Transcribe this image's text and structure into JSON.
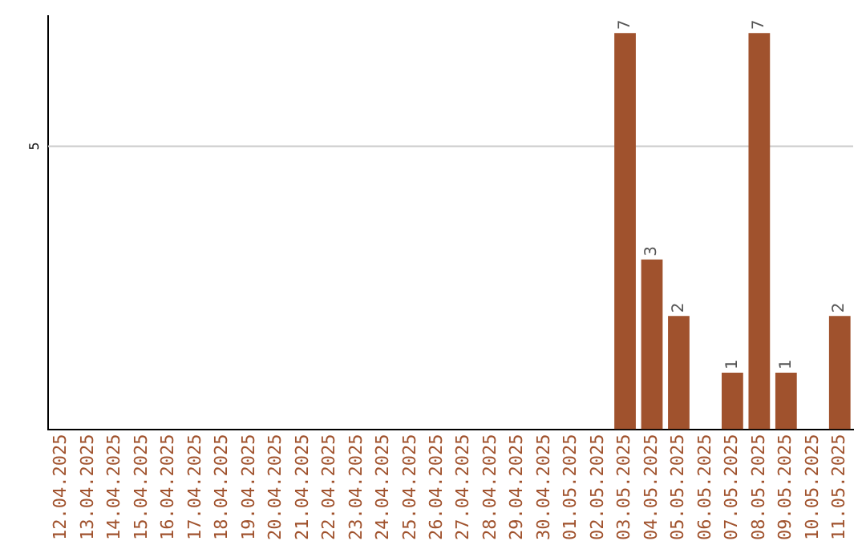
{
  "chart_data": {
    "type": "bar",
    "categories": [
      "12.04.2025",
      "13.04.2025",
      "14.04.2025",
      "15.04.2025",
      "16.04.2025",
      "17.04.2025",
      "18.04.2025",
      "19.04.2025",
      "20.04.2025",
      "21.04.2025",
      "22.04.2025",
      "23.04.2025",
      "24.04.2025",
      "25.04.2025",
      "26.04.2025",
      "27.04.2025",
      "28.04.2025",
      "29.04.2025",
      "30.04.2025",
      "01.05.2025",
      "02.05.2025",
      "03.05.2025",
      "04.05.2025",
      "05.05.2025",
      "06.05.2025",
      "07.05.2025",
      "08.05.2025",
      "09.05.2025",
      "10.05.2025",
      "11.05.2025"
    ],
    "values": [
      null,
      null,
      null,
      null,
      null,
      null,
      null,
      null,
      null,
      null,
      null,
      null,
      null,
      null,
      null,
      null,
      null,
      null,
      null,
      null,
      null,
      7,
      3,
      2,
      null,
      1,
      7,
      1,
      null,
      2
    ],
    "data_labels": true,
    "color": "#a0522d",
    "ylim": [
      0,
      7.3
    ],
    "ref_lines": [
      {
        "axis": "y",
        "value": 5,
        "label": "5",
        "color": "#cccccc"
      }
    ]
  }
}
